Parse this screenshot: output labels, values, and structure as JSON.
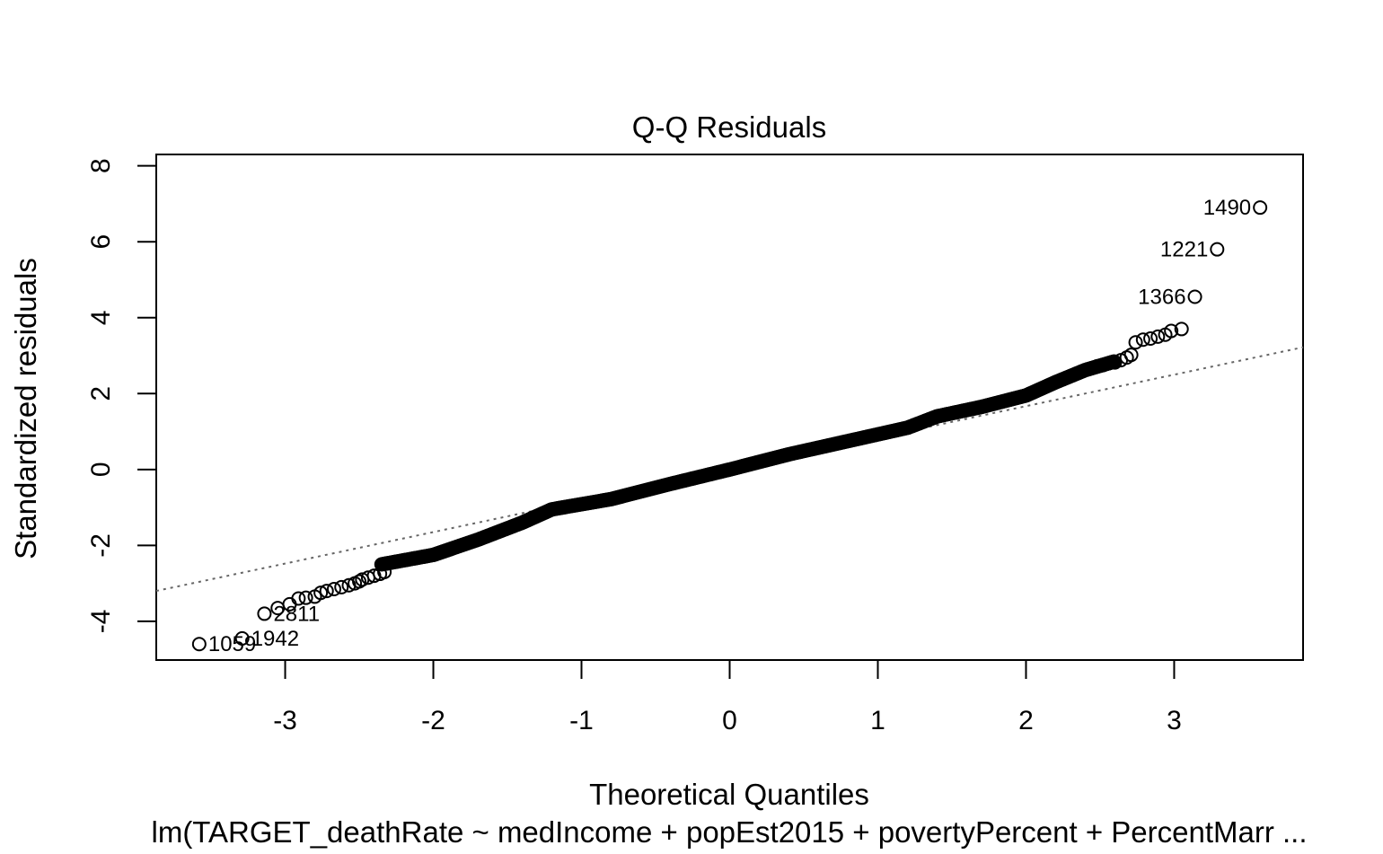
{
  "chart_data": {
    "type": "scatter",
    "title": "Q-Q Residuals",
    "xlabel": "Theoretical Quantiles",
    "ylabel": "Standardized residuals",
    "subtitle": "lm(TARGET_deathRate ~ medIncome + popEst2015 + povertyPercent + PercentMarr ...",
    "xlim": [
      -3.87,
      3.87
    ],
    "ylim": [
      -5.02,
      8.3
    ],
    "xticks": [
      "-3",
      "-2",
      "-1",
      "0",
      "1",
      "2",
      "3"
    ],
    "yticks": [
      "-4",
      "-2",
      "0",
      "2",
      "4",
      "6",
      "8"
    ],
    "grid": false,
    "reference_line": {
      "x": [
        -3.87,
        3.87
      ],
      "y": [
        -3.2,
        3.22
      ],
      "style": "dotted",
      "color": "#666666"
    },
    "curve": {
      "x": [
        -2.35,
        -2.0,
        -1.7,
        -1.4,
        -1.2,
        -0.8,
        -0.4,
        0.0,
        0.4,
        0.8,
        1.2,
        1.4,
        1.7,
        2.0,
        2.2,
        2.4,
        2.6
      ],
      "y": [
        -2.5,
        -2.25,
        -1.85,
        -1.4,
        -1.05,
        -0.78,
        -0.38,
        0.0,
        0.4,
        0.75,
        1.1,
        1.4,
        1.65,
        1.95,
        2.3,
        2.62,
        2.85
      ]
    },
    "tail_points_low": [
      {
        "x": -2.33,
        "y": -2.7
      },
      {
        "x": -2.36,
        "y": -2.75
      },
      {
        "x": -2.4,
        "y": -2.8
      },
      {
        "x": -2.44,
        "y": -2.85
      },
      {
        "x": -2.48,
        "y": -2.9
      },
      {
        "x": -2.5,
        "y": -2.95
      },
      {
        "x": -2.53,
        "y": -3.0
      },
      {
        "x": -2.57,
        "y": -3.05
      },
      {
        "x": -2.62,
        "y": -3.1
      },
      {
        "x": -2.67,
        "y": -3.15
      },
      {
        "x": -2.72,
        "y": -3.2
      },
      {
        "x": -2.76,
        "y": -3.25
      },
      {
        "x": -2.8,
        "y": -3.35
      },
      {
        "x": -2.86,
        "y": -3.38
      },
      {
        "x": -2.91,
        "y": -3.4
      },
      {
        "x": -2.97,
        "y": -3.55
      },
      {
        "x": -3.05,
        "y": -3.65
      }
    ],
    "tail_points_high": [
      {
        "x": 2.48,
        "y": 2.72
      },
      {
        "x": 2.52,
        "y": 2.75
      },
      {
        "x": 2.56,
        "y": 2.8
      },
      {
        "x": 2.6,
        "y": 2.82
      },
      {
        "x": 2.64,
        "y": 2.88
      },
      {
        "x": 2.68,
        "y": 2.95
      },
      {
        "x": 2.71,
        "y": 3.02
      },
      {
        "x": 2.74,
        "y": 3.35
      },
      {
        "x": 2.79,
        "y": 3.42
      },
      {
        "x": 2.84,
        "y": 3.45
      },
      {
        "x": 2.89,
        "y": 3.5
      },
      {
        "x": 2.94,
        "y": 3.55
      },
      {
        "x": 2.98,
        "y": 3.65
      },
      {
        "x": 3.05,
        "y": 3.7
      }
    ],
    "labeled_points": [
      {
        "label": "1490",
        "x": 3.58,
        "y": 6.9
      },
      {
        "label": "1221",
        "x": 3.29,
        "y": 5.8
      },
      {
        "label": "1366",
        "x": 3.14,
        "y": 4.55
      },
      {
        "label": "2811",
        "x": -3.14,
        "y": -3.8
      },
      {
        "label": "1942",
        "x": -3.29,
        "y": -4.45
      },
      {
        "label": "1059",
        "x": -3.58,
        "y": -4.6
      }
    ],
    "colors": {
      "points": "#000000",
      "reference_line": "#666666"
    }
  }
}
